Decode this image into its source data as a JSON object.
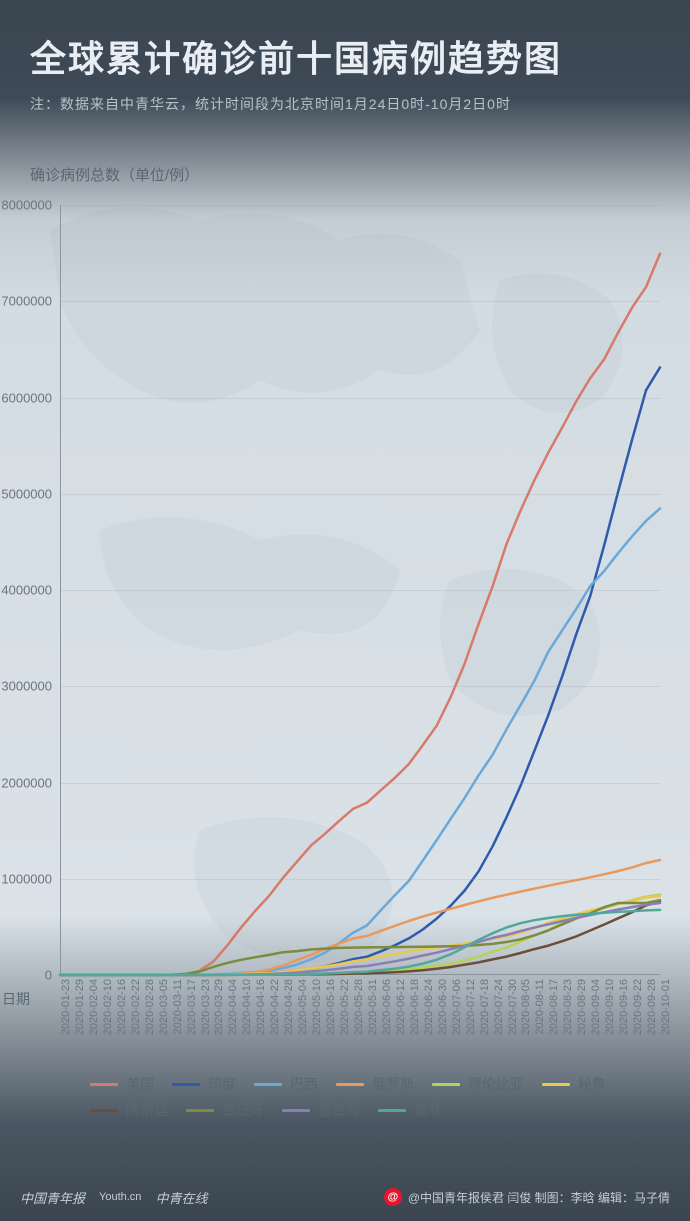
{
  "header": {
    "title": "全球累计确诊前十国病例趋势图",
    "subtitle": "注：数据来自中青华云，统计时间段为北京时间1月24日0时-10月2日0时"
  },
  "chart": {
    "type": "line",
    "yaxis_title": "确诊病例总数（单位/例）",
    "xaxis_title": "日期",
    "ylim": [
      0,
      8000000
    ],
    "ytick_step": 1000000,
    "yticks": [
      "0",
      "1000000",
      "2000000",
      "3000000",
      "4000000",
      "5000000",
      "6000000",
      "7000000",
      "8000000"
    ],
    "xticks": [
      "2020-01-23",
      "2020-01-29",
      "2020-02-04",
      "2020-02-10",
      "2020-02-16",
      "2020-02-22",
      "2020-02-28",
      "2020-03-05",
      "2020-03-11",
      "2020-03-17",
      "2020-03-23",
      "2020-03-29",
      "2020-04-04",
      "2020-04-10",
      "2020-04-16",
      "2020-04-22",
      "2020-04-28",
      "2020-05-04",
      "2020-05-10",
      "2020-05-16",
      "2020-05-22",
      "2020-05-28",
      "2020-05-31",
      "2020-06-06",
      "2020-06-12",
      "2020-06-18",
      "2020-06-24",
      "2020-06-30",
      "2020-07-06",
      "2020-07-12",
      "2020-07-18",
      "2020-07-24",
      "2020-07-30",
      "2020-08-05",
      "2020-08-11",
      "2020-08-17",
      "2020-08-23",
      "2020-08-29",
      "2020-09-04",
      "2020-09-10",
      "2020-09-16",
      "2020-09-22",
      "2020-09-28",
      "2020-10-01"
    ],
    "background_color": "#dae2e8",
    "grid_color": "rgba(150,160,170,0.25)",
    "axis_color": "#8a95a0",
    "tick_font_color": "#6a7580",
    "tick_fontsize": 12,
    "label_fontsize": 15,
    "line_width": 2.5,
    "series": [
      {
        "name": "美国",
        "color": "#d77a6a",
        "values": [
          0,
          5,
          11,
          12,
          15,
          35,
          62,
          221,
          1301,
          6362,
          43734,
          140822,
          308231,
          496535,
          667225,
          825306,
          1012582,
          1180634,
          1347309,
          1467820,
          1601434,
          1725275,
          1790191,
          1920061,
          2048986,
          2191052,
          2388153,
          2590582,
          2888729,
          3236130,
          3647715,
          4038864,
          4478264,
          4823891,
          5141208,
          5429115,
          5690244,
          5961582,
          6200181,
          6397547,
          6674411,
          6933548,
          7147241,
          7494671
        ]
      },
      {
        "name": "印度",
        "color": "#2e5aac",
        "values": [
          0,
          0,
          0,
          0,
          0,
          0,
          0,
          31,
          62,
          137,
          499,
          1071,
          3588,
          7600,
          13430,
          21370,
          31324,
          46437,
          67161,
          90648,
          124794,
          165386,
          190609,
          246622,
          308993,
          380532,
          472985,
          585481,
          719664,
          878254,
          1077618,
          1337024,
          1638870,
          1964536,
          2329638,
          2702681,
          3106348,
          3542733,
          3936747,
          4465863,
          5020359,
          5562663,
          6074702,
          6312584
        ]
      },
      {
        "name": "巴西",
        "color": "#6aa8d8",
        "values": [
          0,
          0,
          0,
          0,
          0,
          0,
          0,
          8,
          52,
          291,
          1924,
          4579,
          10360,
          19943,
          30683,
          45757,
          73235,
          108620,
          162699,
          233142,
          330890,
          438238,
          514849,
          672846,
          828810,
          978142,
          1188631,
          1402041,
          1623284,
          1839850,
          2074860,
          2287475,
          2552265,
          2801921,
          3057470,
          3359570,
          3582362,
          3804803,
          4041638,
          4197889,
          4382263,
          4558068,
          4717991,
          4847092
        ]
      },
      {
        "name": "俄罗斯",
        "color": "#e8995e",
        "values": [
          0,
          0,
          0,
          0,
          0,
          0,
          0,
          4,
          20,
          114,
          495,
          1836,
          4731,
          11917,
          27938,
          57999,
          99399,
          155370,
          209688,
          272043,
          326448,
          379051,
          405843,
          458689,
          511423,
          561091,
          606881,
          647849,
          687862,
          727162,
          765437,
          800849,
          834499,
          866627,
          897599,
          927745,
          956749,
          985346,
          1015105,
          1046370,
          1079519,
          1117487,
          1162428,
          1194643
        ]
      },
      {
        "name": "哥伦比亚",
        "color": "#b5d35a",
        "values": [
          0,
          0,
          0,
          0,
          0,
          0,
          0,
          0,
          0,
          65,
          277,
          702,
          1406,
          2473,
          3233,
          4356,
          5949,
          7973,
          11063,
          14939,
          19131,
          25366,
          29383,
          38027,
          46858,
          60217,
          77113,
          97846,
          120281,
          150445,
          190700,
          240795,
          286020,
          345714,
          410453,
          468332,
          541139,
          607904,
          650062,
          694664,
          736377,
          777537,
          813056,
          835339
        ]
      },
      {
        "name": "秘鲁",
        "color": "#e8c84d",
        "values": [
          0,
          0,
          0,
          0,
          0,
          0,
          0,
          0,
          0,
          86,
          395,
          950,
          2281,
          6848,
          12491,
          19250,
          31190,
          47372,
          68822,
          88541,
          111698,
          141779,
          164476,
          196515,
          220749,
          244388,
          268602,
          285213,
          305703,
          326326,
          349500,
          375961,
          400683,
          439890,
          489680,
          541493,
          585236,
          629961,
          670145,
          702776,
          738020,
          768895,
          805302,
          818297
        ]
      },
      {
        "name": "阿根廷",
        "color": "#6b4f3a",
        "values": [
          0,
          0,
          0,
          0,
          0,
          0,
          0,
          0,
          19,
          79,
          301,
          820,
          1451,
          1975,
          2669,
          3288,
          4127,
          4887,
          6034,
          7805,
          10649,
          14702,
          16851,
          22020,
          28764,
          37510,
          49851,
          64530,
          83426,
          106910,
          130774,
          162526,
          191302,
          228195,
          268574,
          305966,
          350867,
          401239,
          461882,
          524198,
          589012,
          652174,
          723132,
          765002
        ]
      },
      {
        "name": "西班牙",
        "color": "#7b8c3f",
        "values": [
          0,
          0,
          0,
          1,
          2,
          2,
          33,
          261,
          2277,
          11826,
          35480,
          85199,
          126168,
          158273,
          184948,
          208389,
          236899,
          248301,
          264663,
          274367,
          281904,
          284986,
          286718,
          288630,
          290289,
          292348,
          294166,
          296351,
          298869,
          302814,
          311916,
          322980,
          342813,
          370867,
          412553,
          462858,
          525549,
          587448,
          640040,
          704209,
          748266,
          748266,
          748266,
          778607
        ]
      },
      {
        "name": "墨西哥",
        "color": "#8a7fb5",
        "values": [
          0,
          0,
          0,
          0,
          0,
          0,
          0,
          5,
          12,
          93,
          367,
          993,
          1890,
          3844,
          6297,
          10544,
          16752,
          26025,
          36327,
          49219,
          65856,
          84627,
          93435,
          117103,
          142690,
          170485,
          202951,
          231770,
          268008,
          304435,
          344224,
          385036,
          416179,
          456100,
          492522,
          525733,
          560164,
          591712,
          623090,
          652364,
          680931,
          705263,
          730317,
          748315
        ]
      },
      {
        "name": "南非",
        "color": "#4fa89a",
        "values": [
          0,
          0,
          0,
          0,
          0,
          0,
          0,
          0,
          0,
          62,
          402,
          1280,
          1655,
          2028,
          2605,
          3635,
          4996,
          7220,
          10652,
          15515,
          21343,
          29240,
          34357,
          50879,
          65736,
          87715,
          118375,
          159333,
          215855,
          287796,
          364328,
          434200,
          493183,
          538184,
          568919,
          592144,
          611450,
          625056,
          636884,
          646398,
          655572,
          663282,
          671669,
          676084
        ]
      }
    ]
  },
  "footer": {
    "brand1": "中国青年报",
    "brand2": "Youth.cn",
    "brand3": "中青在线",
    "credit": "@中国青年报侯君 闫俊 制图：李晗 编辑：马子倩"
  }
}
